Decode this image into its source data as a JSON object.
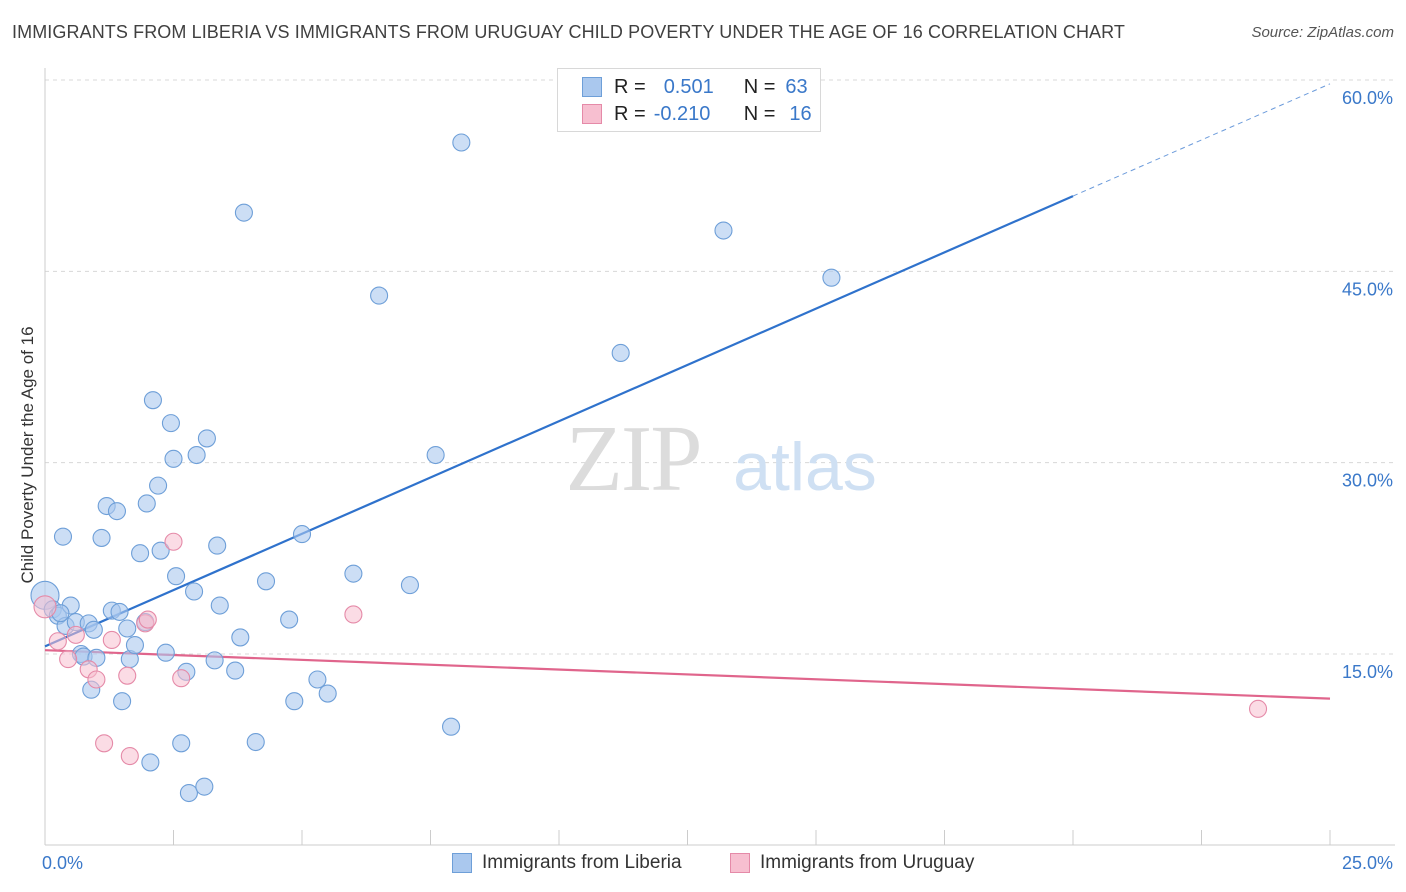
{
  "title": "IMMIGRANTS FROM LIBERIA VS IMMIGRANTS FROM URUGUAY CHILD POVERTY UNDER THE AGE OF 16 CORRELATION CHART",
  "source": "Source: ZipAtlas.com",
  "watermark": {
    "zip": "ZIP",
    "atlas": "atlas"
  },
  "legend": {
    "liberia": {
      "r_label": "R =",
      "r_value": "0.501",
      "n_label": "N =",
      "n_value": "63"
    },
    "uruguay": {
      "r_label": "R =",
      "r_value": "-0.210",
      "n_label": "N =",
      "n_value": "16"
    }
  },
  "colors": {
    "liberia_fill": "#aac8ee",
    "liberia_stroke": "#6e9fd8",
    "liberia_line": "#2f72cc",
    "uruguay_fill": "#f7bfd0",
    "uruguay_stroke": "#e58aa8",
    "uruguay_line": "#e0658c",
    "axis_text": "#3a78c9",
    "grid": "#d8d8d8"
  },
  "chart_data": {
    "type": "scatter",
    "title": "IMMIGRANTS FROM LIBERIA VS IMMIGRANTS FROM URUGUAY CHILD POVERTY UNDER THE AGE OF 16 CORRELATION CHART",
    "xlabel": "",
    "ylabel": "Child Poverty Under the Age of 16",
    "xlim": [
      0,
      25
    ],
    "ylim": [
      0,
      60
    ],
    "x_tick_labels": [
      "0.0%",
      "25.0%"
    ],
    "y_ticks": [
      15,
      30,
      45,
      60
    ],
    "y_tick_labels": [
      "15.0%",
      "30.0%",
      "45.0%",
      "60.0%"
    ],
    "grid": "horizontal dashed",
    "legend_position": "bottom",
    "series": [
      {
        "name": "Immigrants from Liberia",
        "points": [
          [
            0.0,
            19.6
          ],
          [
            0.15,
            18.5
          ],
          [
            0.25,
            18.0
          ],
          [
            0.4,
            17.2
          ],
          [
            0.5,
            18.8
          ],
          [
            0.6,
            17.5
          ],
          [
            0.7,
            15.0
          ],
          [
            0.75,
            14.8
          ],
          [
            0.85,
            17.4
          ],
          [
            0.9,
            12.2
          ],
          [
            0.95,
            16.9
          ],
          [
            1.0,
            14.7
          ],
          [
            0.35,
            24.2
          ],
          [
            1.1,
            24.1
          ],
          [
            1.2,
            26.6
          ],
          [
            1.4,
            26.2
          ],
          [
            1.3,
            18.4
          ],
          [
            1.45,
            18.3
          ],
          [
            1.5,
            11.3
          ],
          [
            1.6,
            17.0
          ],
          [
            1.65,
            14.6
          ],
          [
            1.75,
            15.7
          ],
          [
            1.85,
            22.9
          ],
          [
            1.95,
            17.5
          ],
          [
            1.98,
            26.8
          ],
          [
            2.05,
            6.5
          ],
          [
            2.1,
            34.9
          ],
          [
            2.2,
            28.2
          ],
          [
            2.25,
            23.1
          ],
          [
            2.35,
            15.1
          ],
          [
            2.45,
            33.1
          ],
          [
            2.5,
            30.3
          ],
          [
            2.55,
            21.1
          ],
          [
            2.65,
            8.0
          ],
          [
            2.75,
            13.6
          ],
          [
            2.8,
            4.1
          ],
          [
            2.9,
            19.9
          ],
          [
            2.95,
            30.6
          ],
          [
            3.1,
            4.6
          ],
          [
            3.15,
            31.9
          ],
          [
            3.3,
            14.5
          ],
          [
            3.35,
            23.5
          ],
          [
            3.4,
            18.8
          ],
          [
            3.7,
            13.7
          ],
          [
            3.8,
            16.3
          ],
          [
            3.87,
            49.6
          ],
          [
            4.1,
            8.1
          ],
          [
            4.3,
            20.7
          ],
          [
            4.75,
            17.7
          ],
          [
            4.85,
            11.3
          ],
          [
            5.0,
            24.4
          ],
          [
            5.3,
            13.0
          ],
          [
            5.5,
            11.9
          ],
          [
            6.0,
            21.3
          ],
          [
            6.5,
            43.1
          ],
          [
            7.1,
            20.4
          ],
          [
            7.6,
            30.6
          ],
          [
            7.9,
            9.3
          ],
          [
            8.1,
            55.1
          ],
          [
            11.2,
            38.6
          ],
          [
            13.2,
            48.2
          ],
          [
            15.3,
            44.5
          ],
          [
            0.3,
            18.2
          ]
        ],
        "trend": {
          "x": [
            0,
            20
          ],
          "y": [
            15.6,
            50.9
          ],
          "extended_to": [
            25,
            59.7
          ]
        }
      },
      {
        "name": "Immigrants from Uruguay",
        "points": [
          [
            0.0,
            18.7
          ],
          [
            0.25,
            16.0
          ],
          [
            0.45,
            14.6
          ],
          [
            0.6,
            16.5
          ],
          [
            0.85,
            13.8
          ],
          [
            1.0,
            13.0
          ],
          [
            1.15,
            8.0
          ],
          [
            1.3,
            16.1
          ],
          [
            1.6,
            13.3
          ],
          [
            1.65,
            7.0
          ],
          [
            1.95,
            17.4
          ],
          [
            2.0,
            17.7
          ],
          [
            2.5,
            23.8
          ],
          [
            2.65,
            13.1
          ],
          [
            6.0,
            18.1
          ],
          [
            23.6,
            10.7
          ]
        ],
        "trend": {
          "x": [
            0,
            25
          ],
          "y": [
            15.3,
            11.5
          ]
        }
      }
    ]
  },
  "bottom_legend": {
    "liberia": "Immigrants from Liberia",
    "uruguay": "Immigrants from Uruguay"
  }
}
